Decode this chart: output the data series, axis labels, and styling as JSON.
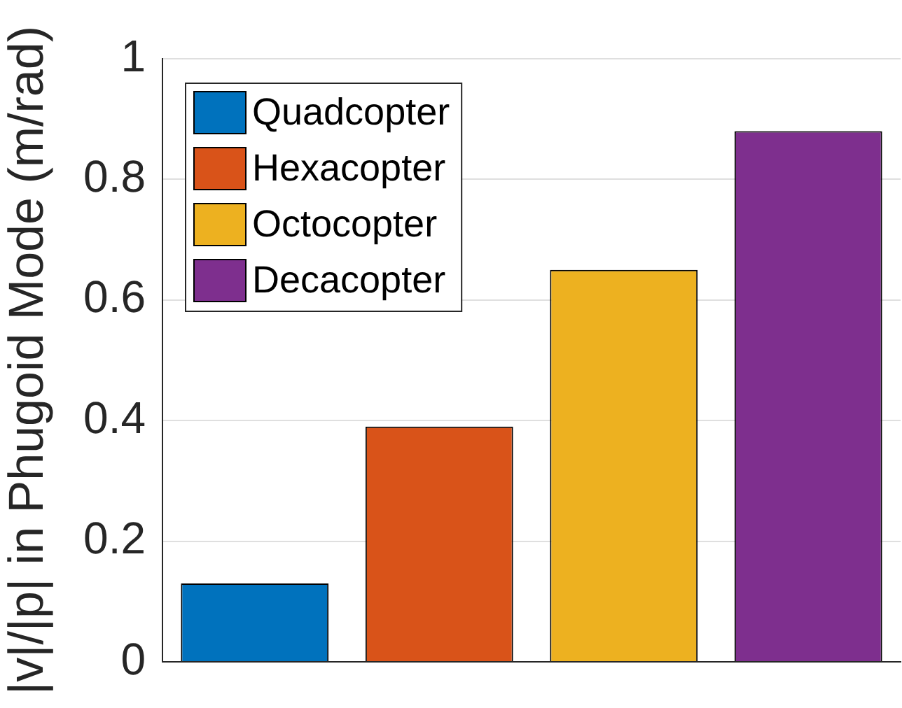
{
  "chart_data": {
    "type": "bar",
    "ylabel": "|v|/|p| in Phugoid Mode (m/rad)",
    "categories": [
      null,
      null,
      null,
      null
    ],
    "series": [
      {
        "name": "Quadcopter",
        "color": "#0072bd",
        "values": [
          0.13,
          null,
          null,
          null
        ]
      },
      {
        "name": "Hexacopter",
        "color": "#d95319",
        "values": [
          null,
          0.39,
          null,
          null
        ]
      },
      {
        "name": "Octocopter",
        "color": "#edb120",
        "values": [
          null,
          null,
          0.65,
          null
        ]
      },
      {
        "name": "Decacopter",
        "color": "#7e2f8e",
        "values": [
          null,
          null,
          null,
          0.88
        ]
      }
    ],
    "ylim": [
      0,
      1
    ],
    "yticks": [
      0,
      0.2,
      0.4,
      0.6,
      0.8,
      1
    ],
    "grid": "y",
    "legend": "top left"
  }
}
